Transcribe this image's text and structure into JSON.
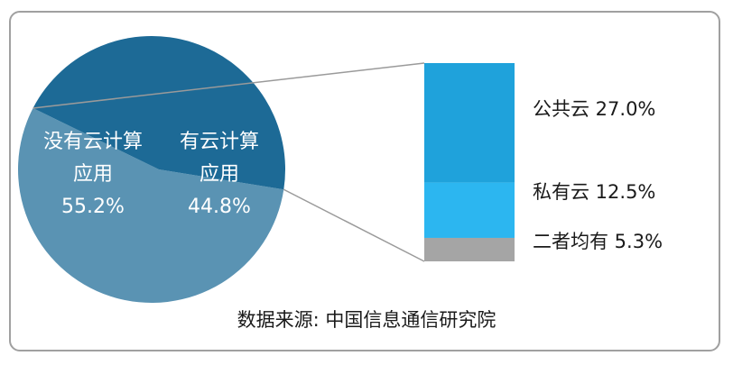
{
  "chart_data": {
    "type": "pie",
    "pie": {
      "slices": [
        {
          "label_lines": [
            "没有云计算",
            "应用"
          ],
          "percent_label": "55.2%",
          "value": 55.2,
          "color": "#5a93b3"
        },
        {
          "label_lines": [
            "有云计算",
            "应用"
          ],
          "percent_label": "44.8%",
          "value": 44.8,
          "color": "#1d6a96"
        }
      ]
    },
    "breakdown_of": "有云计算应用",
    "stacked_bar": {
      "segments": [
        {
          "label": "公共云 27.0%",
          "value": 27.0,
          "color": "#1fa2db"
        },
        {
          "label": "私有云 12.5%",
          "value": 12.5,
          "color": "#2cb6f0"
        },
        {
          "label": "二者均有 5.3%",
          "value": 5.3,
          "color": "#a5a5a5"
        }
      ]
    }
  },
  "footer": {
    "source": "数据来源: 中国信息通信研究院"
  },
  "colors": {
    "connector_line": "#9a9a9a",
    "border": "#a0a0a0"
  }
}
